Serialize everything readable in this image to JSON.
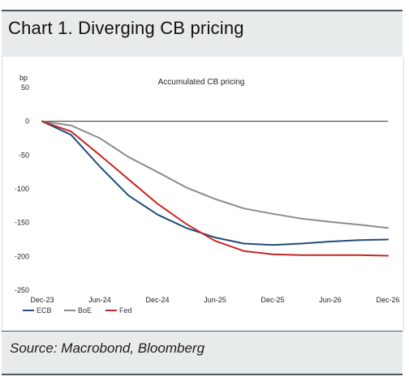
{
  "header": {
    "title": "Chart 1. Diverging CB pricing"
  },
  "footer": {
    "source": "Source: Macrobond, Bloomberg"
  },
  "colors": {
    "ECB": "#1f4e79",
    "BoE": "#8c8c8c",
    "Fed": "#c62828",
    "zero_line": "#333333"
  },
  "chart_data": {
    "type": "line",
    "title": "Accumulated CB pricing",
    "ylabel": "bp",
    "xlabel": "",
    "ylim": [
      -250,
      50
    ],
    "yticks": [
      50,
      0,
      -50,
      -100,
      -150,
      -200,
      -250
    ],
    "xlim": [
      "2023-12",
      "2026-12"
    ],
    "xticks": [
      "Dec-23",
      "Jun-24",
      "Dec-24",
      "Jun-25",
      "Dec-25",
      "Jun-26",
      "Dec-26"
    ],
    "grid": false,
    "legend": "bottom-left",
    "x": [
      "2023-12",
      "2024-03",
      "2024-06",
      "2024-09",
      "2024-12",
      "2025-03",
      "2025-06",
      "2025-09",
      "2025-12",
      "2026-03",
      "2026-06",
      "2026-09",
      "2026-12"
    ],
    "series": [
      {
        "name": "ECB",
        "values": [
          0,
          -20,
          -67,
          -110,
          -138,
          -158,
          -172,
          -181,
          -183,
          -181,
          -178,
          -176,
          -175
        ]
      },
      {
        "name": "BoE",
        "values": [
          0,
          -6,
          -25,
          -53,
          -75,
          -98,
          -115,
          -129,
          -137,
          -144,
          -149,
          -153,
          -158
        ]
      },
      {
        "name": "Fed",
        "values": [
          0,
          -15,
          -50,
          -86,
          -122,
          -152,
          -177,
          -192,
          -197,
          -198,
          -198,
          -198,
          -199
        ]
      }
    ]
  }
}
